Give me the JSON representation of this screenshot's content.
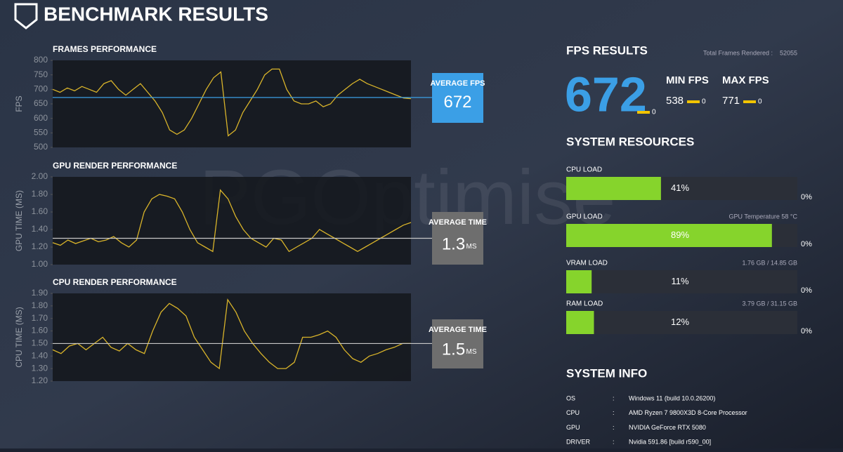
{
  "header": {
    "title": "BENCHMARK RESULTS"
  },
  "watermark": "PGOptimise",
  "chart_data": [
    {
      "type": "line",
      "title": "FRAMES PERFORMANCE",
      "y_label": "FPS",
      "color": "#d9b42a",
      "values": [
        700,
        690,
        705,
        695,
        710,
        700,
        690,
        720,
        730,
        700,
        680,
        700,
        720,
        690,
        660,
        620,
        560,
        545,
        560,
        600,
        650,
        700,
        740,
        760,
        540,
        560,
        620,
        660,
        700,
        750,
        770,
        770,
        700,
        660,
        650,
        650,
        660,
        640,
        650,
        680,
        700,
        720,
        735,
        720,
        710,
        700,
        690,
        680,
        670,
        668
      ],
      "ylim": [
        500,
        800
      ],
      "yticks": [
        500,
        550,
        600,
        650,
        700,
        750,
        800
      ],
      "average_label": "AVERAGE FPS",
      "average_value": 672,
      "average_color": "#3b9fe6"
    },
    {
      "type": "line",
      "title": "GPU RENDER PERFORMANCE",
      "y_label": "GPU TIME (MS)",
      "color": "#d9b42a",
      "values": [
        1.25,
        1.22,
        1.28,
        1.24,
        1.27,
        1.3,
        1.26,
        1.28,
        1.32,
        1.25,
        1.2,
        1.28,
        1.6,
        1.75,
        1.8,
        1.78,
        1.75,
        1.6,
        1.4,
        1.25,
        1.2,
        1.15,
        1.85,
        1.75,
        1.55,
        1.4,
        1.3,
        1.25,
        1.2,
        1.3,
        1.28,
        1.15,
        1.2,
        1.25,
        1.3,
        1.4,
        1.35,
        1.3,
        1.25,
        1.2,
        1.15,
        1.2,
        1.25,
        1.3,
        1.35,
        1.4,
        1.45,
        1.48
      ],
      "ylim": [
        1.0,
        2.0
      ],
      "yticks": [
        {
          "value": 1,
          "label": "1.00"
        },
        {
          "value": 1.2,
          "label": "1.20"
        },
        {
          "value": 1.4,
          "label": "1.40"
        },
        {
          "value": 1.6,
          "label": "1.60"
        },
        {
          "value": 1.8,
          "label": "1.80"
        },
        {
          "value": 2,
          "label": "2.00"
        }
      ],
      "average_label": "AVERAGE TIME",
      "average_value": 1.3,
      "unit": "MS",
      "average_color": "#6e6e6e"
    },
    {
      "type": "line",
      "title": "CPU RENDER PERFORMANCE",
      "y_label": "CPU TIME (MS)",
      "color": "#d9b42a",
      "values": [
        1.45,
        1.42,
        1.48,
        1.5,
        1.45,
        1.5,
        1.55,
        1.47,
        1.44,
        1.5,
        1.45,
        1.42,
        1.6,
        1.75,
        1.82,
        1.78,
        1.72,
        1.55,
        1.45,
        1.35,
        1.3,
        1.85,
        1.75,
        1.6,
        1.5,
        1.42,
        1.35,
        1.3,
        1.3,
        1.35,
        1.55,
        1.55,
        1.57,
        1.6,
        1.55,
        1.45,
        1.38,
        1.35,
        1.4,
        1.42,
        1.45,
        1.47,
        1.5,
        1.5
      ],
      "ylim": [
        1.2,
        1.9
      ],
      "yticks": [
        {
          "value": 1.2,
          "label": "1.20"
        },
        {
          "value": 1.3,
          "label": "1.30"
        },
        {
          "value": 1.4,
          "label": "1.40"
        },
        {
          "value": 1.5,
          "label": "1.50"
        },
        {
          "value": 1.6,
          "label": "1.60"
        },
        {
          "value": 1.7,
          "label": "1.70"
        },
        {
          "value": 1.8,
          "label": "1.80"
        },
        {
          "value": 1.9,
          "label": "1.90"
        }
      ],
      "average_label": "AVERAGE TIME",
      "average_value": 1.5,
      "unit": "MS",
      "average_color": "#6e6e6e"
    }
  ],
  "fps_results": {
    "title": "FPS RESULTS",
    "total_label": "Total Frames Rendered :",
    "total_value": 52055,
    "average": 672,
    "average_sub": 0,
    "min_label": "MIN FPS",
    "min": 538,
    "min_sub": 0,
    "max_label": "MAX FPS",
    "max": 771,
    "max_sub": 0
  },
  "system_resources": {
    "title": "SYSTEM RESOURCES",
    "items": [
      {
        "name": "CPU LOAD",
        "value": 41,
        "value_label": "41%",
        "side_label": "0%"
      },
      {
        "name": "GPU LOAD",
        "value": 89,
        "value_label": "89%",
        "side_label": "0%",
        "note": "GPU Temperature 58 °C"
      },
      {
        "name": "VRAM LOAD",
        "value": 11,
        "value_label": "11%",
        "side_label": "0%",
        "note": "1.76 GB / 14.85 GB"
      },
      {
        "name": "RAM LOAD",
        "value": 12,
        "value_label": "12%",
        "side_label": "0%",
        "note": "3.79 GB / 31.15 GB"
      }
    ]
  },
  "system_info": {
    "title": "SYSTEM INFO",
    "separator": ":",
    "rows": [
      {
        "key": "OS",
        "value": "Windows 11 (build 10.0.26200)"
      },
      {
        "key": "CPU",
        "value": "AMD Ryzen 7 9800X3D 8-Core Processor"
      },
      {
        "key": "GPU",
        "value": "NVIDIA GeForce RTX 5080"
      },
      {
        "key": "DRIVER",
        "value": "Nvidia 591.86 [build r590_00]"
      }
    ]
  }
}
